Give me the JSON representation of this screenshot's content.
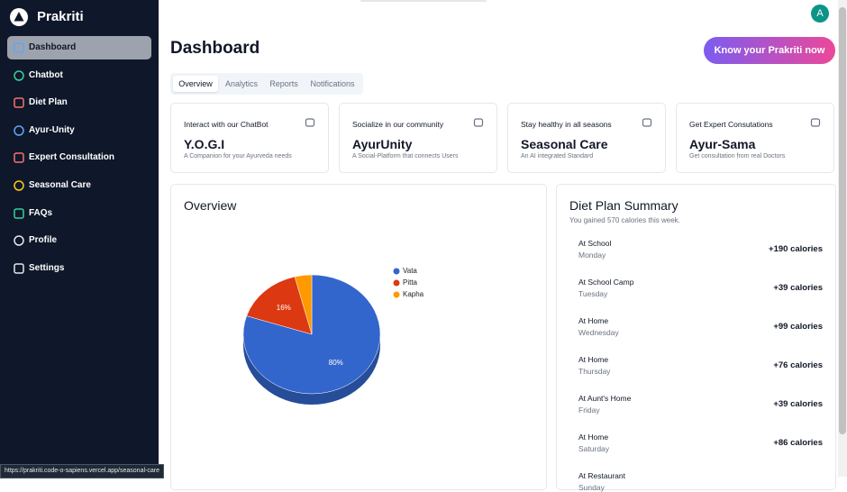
{
  "sidebar": {
    "brand": "Prakriti",
    "items": [
      "Dashboard",
      "Chatbot",
      "Diet Plan",
      "Ayur-Unity",
      "Expert Consultation",
      "Seasonal Care",
      "FAQs",
      "Profile",
      "Settings"
    ]
  },
  "header": {
    "avatar": "A",
    "title": "Dashboard",
    "button": "Know your Prakriti now"
  },
  "tabs": [
    "Overview",
    "Analytics",
    "Reports",
    "Notifications"
  ],
  "cards": [
    {
      "caption": "Interact with our ChatBot",
      "title": "Y.O.G.I",
      "subtitle": "A Companion for your Ayurveda needs"
    },
    {
      "caption": "Socialize in our community",
      "title": "AyurUnity",
      "subtitle": "A Social-Platform that connects Users"
    },
    {
      "caption": "Stay healthy in all seasons",
      "title": "Seasonal Care",
      "subtitle": "An AI integrated Standard"
    },
    {
      "caption": "Get Expert Consutations",
      "title": "Ayur-Sama",
      "subtitle": "Get consultation from real Doctors"
    }
  ],
  "chart_data": {
    "type": "pie",
    "title": "Overview",
    "categories": [
      "Vata",
      "Pitta",
      "Kapha"
    ],
    "values": [
      80,
      16,
      4
    ],
    "value_labels": [
      "80%",
      "16%",
      null
    ],
    "colors": [
      "#3366cc",
      "#dc3912",
      "#ff9900"
    ]
  },
  "diet": {
    "title": "Diet Plan Summary",
    "subtitle": "You gained 570 calories this week.",
    "items": [
      {
        "place": "At School",
        "day": "Monday",
        "calories": "+190 calories"
      },
      {
        "place": "At School Camp",
        "day": "Tuesday",
        "calories": "+39 calories"
      },
      {
        "place": "At Home",
        "day": "Wednesday",
        "calories": "+99 calories"
      },
      {
        "place": "At Home",
        "day": "Thursday",
        "calories": "+76 calories"
      },
      {
        "place": "At Aunt's Home",
        "day": "Friday",
        "calories": "+39 calories"
      },
      {
        "place": "At Home",
        "day": "Saturday",
        "calories": "+86 calories"
      },
      {
        "place": "At Restaurant",
        "day": "Sunday",
        "calories": ""
      }
    ]
  },
  "status_url": "https://prakriti.code-o-sapiens.vercel.app/seasonal-care"
}
